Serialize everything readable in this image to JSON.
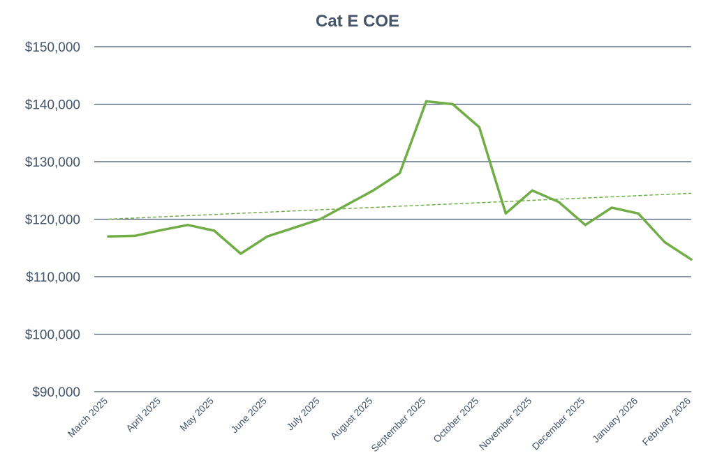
{
  "chart_data": {
    "type": "line",
    "title": "Cat E COE",
    "xlabel": "",
    "ylabel": "",
    "ylim": [
      90000,
      150000
    ],
    "yticks": [
      90000,
      100000,
      110000,
      120000,
      130000,
      140000,
      150000
    ],
    "ytick_labels": [
      "$90,000",
      "$100,000",
      "$110,000",
      "$120,000",
      "$130,000",
      "$140,000",
      "$150,000"
    ],
    "x_labels": [
      "March 2025",
      "April 2025",
      "May 2025",
      "June 2025",
      "July 2025",
      "August 2025",
      "September 2025",
      "October 2025",
      "November 2025",
      "December 2025",
      "January 2026",
      "February 2026"
    ],
    "x_index_range": [
      0,
      22
    ],
    "grid": true,
    "legend": "none",
    "series": [
      {
        "x": [
          0,
          1,
          2,
          3,
          4,
          5,
          6,
          7,
          8,
          9,
          10,
          11,
          12,
          13,
          14,
          15,
          16,
          17,
          18,
          19,
          20,
          21,
          22
        ],
        "values": [
          117000,
          117100,
          118100,
          119000,
          118000,
          114000,
          117000,
          118500,
          120000,
          122500,
          125000,
          128000,
          140500,
          140000,
          136000,
          121000,
          125000,
          123000,
          119000,
          122000,
          121000,
          116000,
          113000
        ],
        "color": "#70ad47"
      }
    ],
    "trendline": {
      "x": [
        0,
        22
      ],
      "values": [
        120000,
        124500
      ],
      "color": "#70ad47",
      "style": "dashed"
    },
    "colors": {
      "title": "#44546a",
      "tick_text": "#44546a",
      "grid": "#44546a"
    }
  }
}
